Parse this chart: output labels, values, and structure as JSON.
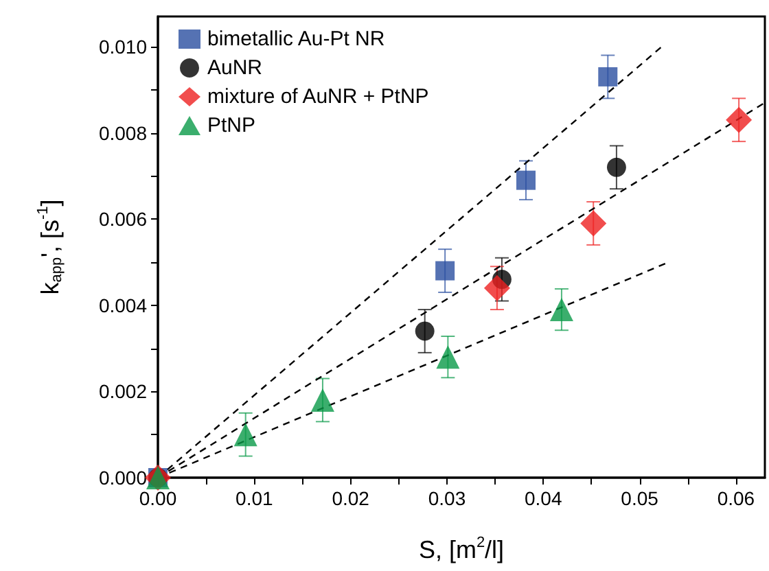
{
  "chart_data": {
    "type": "scatter",
    "xlabel": "S, [m$^{2}$/l]",
    "ylabel": "k$_{app}$', [s$^{-1}$]",
    "xlim": [
      0,
      0.063
    ],
    "ylim": [
      0,
      0.0107
    ],
    "xticks": [
      {
        "value": 0,
        "label": "0.00"
      },
      {
        "value": 0.005,
        "label": null
      },
      0.01,
      {
        "value": 0.015,
        "label": null
      },
      0.02,
      {
        "value": 0.025,
        "label": null
      },
      0.03,
      {
        "value": 0.035,
        "label": null
      },
      0.04,
      {
        "value": 0.045,
        "label": null
      },
      0.05,
      {
        "value": 0.055,
        "label": null
      },
      0.06
    ],
    "yticks": [
      {
        "value": 0,
        "label": "0.000"
      },
      {
        "value": 0.001,
        "label": null
      },
      {
        "value": 0.002,
        "label": "0.002"
      },
      {
        "value": 0.003,
        "label": null
      },
      {
        "value": 0.004,
        "label": "0.004"
      },
      {
        "value": 0.005,
        "label": null
      },
      {
        "value": 0.006,
        "label": "0.006"
      },
      {
        "value": 0.007,
        "label": null
      },
      {
        "value": 0.008,
        "label": "0.008"
      },
      {
        "value": 0.009,
        "label": null
      },
      {
        "value": 0.01,
        "label": "0.010"
      }
    ],
    "grid": false,
    "legend": "top left",
    "series": [
      {
        "name": "bimetallic Au-Pt NR",
        "color": "#2a4fa0",
        "marker": "square",
        "x": [
          0,
          0.0298,
          0.0382,
          0.0467
        ],
        "values": [
          0,
          0.0048,
          0.0069,
          0.0093
        ],
        "errors": [
          null,
          0.0005,
          0.00045,
          0.0005
        ]
      },
      {
        "name": "AuNR",
        "color": "#000000",
        "marker": "circle",
        "x": [
          0,
          0.0277,
          0.0357,
          0.0476
        ],
        "values": [
          0,
          0.0034,
          0.0046,
          0.0072
        ],
        "errors": [
          null,
          0.0005,
          0.0005,
          0.0005
        ]
      },
      {
        "name": "mixture of AuNR + PtNP",
        "color": "#ee2020",
        "marker": "diamond",
        "x": [
          0,
          0.0352,
          0.0452,
          0.0603
        ],
        "values": [
          0,
          0.0044,
          0.0059,
          0.0083
        ],
        "errors": [
          null,
          0.0005,
          0.0005,
          0.0005
        ]
      },
      {
        "name": "PtNP",
        "color": "#0a9a48",
        "marker": "triangle",
        "x": [
          0,
          0.0091,
          0.0171,
          0.0301,
          0.0419
        ],
        "values": [
          0,
          0.001,
          0.0018,
          0.0028,
          0.0039
        ],
        "errors": [
          null,
          0.0005,
          0.0005,
          0.00048,
          0.00048
        ]
      },
      {
        "type": "line",
        "color": "#000000",
        "marker": "none",
        "line_style": "dashed",
        "x": [
          0,
          0.0523
        ],
        "values": [
          0,
          0.01
        ]
      },
      {
        "type": "line",
        "color": "#000000",
        "marker": "none",
        "line_style": "dashed",
        "x": [
          0,
          0.063
        ],
        "values": [
          0,
          0.0087
        ]
      },
      {
        "type": "line",
        "color": "#000000",
        "marker": "none",
        "line_style": "dashed",
        "x": [
          0,
          0.053
        ],
        "values": [
          0,
          0.005
        ]
      }
    ]
  }
}
